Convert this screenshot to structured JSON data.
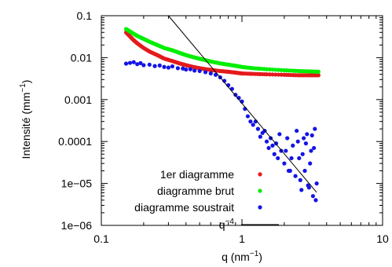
{
  "chart_data": {
    "type": "scatter",
    "xscale": "log",
    "yscale": "log",
    "xlim": [
      0.1,
      10
    ],
    "ylim": [
      1e-06,
      0.1
    ],
    "xlabel": "q (nm",
    "xlabel_exp": "−1",
    "xlabel_end": ")",
    "ylabel": "Intensité (mm",
    "ylabel_exp": "−1",
    "ylabel_end": ")",
    "x_ticks": [
      {
        "value": 0.1,
        "label": "0.1"
      },
      {
        "value": 1,
        "label": "1"
      },
      {
        "value": 10,
        "label": "10"
      }
    ],
    "y_ticks": [
      {
        "value": 0.1,
        "label": "0.1"
      },
      {
        "value": 0.01,
        "label": "0.01"
      },
      {
        "value": 0.001,
        "label": "0.001"
      },
      {
        "value": 0.0001,
        "label": "0.0001"
      },
      {
        "value": 1e-05,
        "label": "1e−05"
      },
      {
        "value": 1e-06,
        "label": "1e−06"
      }
    ],
    "grid": false,
    "legend_position": "bottom-right",
    "series": [
      {
        "name": "1er diagramme",
        "color": "#e41a1c",
        "kind": "points",
        "points": [
          [
            0.15,
            0.04
          ],
          [
            0.16,
            0.032
          ],
          [
            0.17,
            0.026
          ],
          [
            0.18,
            0.022
          ],
          [
            0.2,
            0.017
          ],
          [
            0.22,
            0.014
          ],
          [
            0.25,
            0.0115
          ],
          [
            0.28,
            0.0095
          ],
          [
            0.32,
            0.0083
          ],
          [
            0.36,
            0.0073
          ],
          [
            0.4,
            0.0066
          ],
          [
            0.45,
            0.006
          ],
          [
            0.5,
            0.0056
          ],
          [
            0.55,
            0.0053
          ],
          [
            0.6,
            0.0051
          ],
          [
            0.7,
            0.0048
          ],
          [
            0.8,
            0.0046
          ],
          [
            0.9,
            0.0044
          ],
          [
            1.0,
            0.0042
          ],
          [
            1.2,
            0.0041
          ],
          [
            1.5,
            0.004
          ],
          [
            2.0,
            0.0039
          ],
          [
            2.5,
            0.0038
          ],
          [
            3.0,
            0.0038
          ],
          [
            3.5,
            0.0038
          ]
        ]
      },
      {
        "name": "diagramme brut",
        "color": "#00ee00",
        "kind": "points",
        "points": [
          [
            0.15,
            0.048
          ],
          [
            0.16,
            0.042
          ],
          [
            0.17,
            0.037
          ],
          [
            0.18,
            0.033
          ],
          [
            0.2,
            0.028
          ],
          [
            0.22,
            0.024
          ],
          [
            0.25,
            0.02
          ],
          [
            0.28,
            0.017
          ],
          [
            0.32,
            0.015
          ],
          [
            0.36,
            0.013
          ],
          [
            0.4,
            0.0115
          ],
          [
            0.45,
            0.0103
          ],
          [
            0.5,
            0.0094
          ],
          [
            0.55,
            0.0087
          ],
          [
            0.6,
            0.0081
          ],
          [
            0.7,
            0.0073
          ],
          [
            0.8,
            0.0068
          ],
          [
            0.9,
            0.0064
          ],
          [
            1.0,
            0.006
          ],
          [
            1.2,
            0.0056
          ],
          [
            1.5,
            0.0053
          ],
          [
            2.0,
            0.005
          ],
          [
            2.5,
            0.0048
          ],
          [
            3.0,
            0.0047
          ],
          [
            3.5,
            0.0046
          ]
        ]
      },
      {
        "name": "diagramme soustrait",
        "color": "#1414e6",
        "kind": "points",
        "points": [
          [
            0.15,
            0.0072
          ],
          [
            0.16,
            0.0075
          ],
          [
            0.17,
            0.0078
          ],
          [
            0.18,
            0.007
          ],
          [
            0.19,
            0.0074
          ],
          [
            0.2,
            0.0066
          ],
          [
            0.22,
            0.0068
          ],
          [
            0.24,
            0.0063
          ],
          [
            0.26,
            0.0065
          ],
          [
            0.28,
            0.006
          ],
          [
            0.3,
            0.0058
          ],
          [
            0.32,
            0.0062
          ],
          [
            0.35,
            0.0056
          ],
          [
            0.38,
            0.0055
          ],
          [
            0.4,
            0.0052
          ],
          [
            0.43,
            0.0053
          ],
          [
            0.46,
            0.0049
          ],
          [
            0.5,
            0.0048
          ],
          [
            0.55,
            0.0045
          ],
          [
            0.6,
            0.0042
          ],
          [
            0.65,
            0.0039
          ],
          [
            0.7,
            0.0034
          ],
          [
            0.75,
            0.0028
          ],
          [
            0.8,
            0.0022
          ],
          [
            0.85,
            0.0018
          ],
          [
            0.9,
            0.0013
          ],
          [
            0.95,
            0.0011
          ],
          [
            1.0,
            0.0009
          ],
          [
            1.05,
            0.0006
          ],
          [
            1.1,
            0.0004
          ],
          [
            1.15,
            0.0003
          ],
          [
            1.2,
            0.00025
          ],
          [
            1.3,
            0.0002
          ],
          [
            1.35,
            0.00013
          ],
          [
            1.4,
            0.00016
          ],
          [
            1.5,
            0.0001
          ],
          [
            1.55,
            7e-05
          ],
          [
            1.6,
            0.00012
          ],
          [
            1.7,
            5e-05
          ],
          [
            1.75,
            9e-05
          ],
          [
            1.8,
            4e-05
          ],
          [
            1.9,
            6e-05
          ],
          [
            2.0,
            3e-05
          ],
          [
            2.1,
            0.00012
          ],
          [
            2.2,
            2e-05
          ],
          [
            2.3,
            8e-05
          ],
          [
            2.4,
            1.5e-05
          ],
          [
            2.5,
            0.0001
          ],
          [
            2.6,
            1.2e-05
          ],
          [
            2.7,
            5e-05
          ],
          [
            2.8,
            2e-05
          ],
          [
            2.9,
            0.00015
          ],
          [
            3.0,
            8e-06
          ],
          [
            3.1,
            6e-05
          ],
          [
            3.2,
            5e-06
          ],
          [
            3.3,
            0.0002
          ],
          [
            3.4,
            1e-05
          ],
          [
            1.25,
            0.0003
          ],
          [
            1.45,
            0.00018
          ],
          [
            1.65,
            8e-05
          ],
          [
            1.85,
            0.00015
          ],
          [
            2.05,
            6e-05
          ],
          [
            2.25,
            4e-05
          ],
          [
            2.45,
            0.00018
          ],
          [
            2.65,
            7e-06
          ],
          [
            2.85,
            9e-05
          ],
          [
            3.05,
            3e-05
          ],
          [
            3.25,
            7e-05
          ],
          [
            3.35,
            4e-06
          ],
          [
            2.15,
            2e-05
          ],
          [
            2.55,
            4e-05
          ],
          [
            2.75,
            0.00012
          ],
          [
            2.95,
            9e-06
          ],
          [
            3.15,
            0.00014
          ]
        ]
      },
      {
        "name": "q",
        "name_exp": "−4",
        "color": "#000000",
        "kind": "line",
        "points": [
          [
            0.3,
            0.1
          ],
          [
            3.4,
            6.1e-06
          ]
        ]
      }
    ]
  }
}
